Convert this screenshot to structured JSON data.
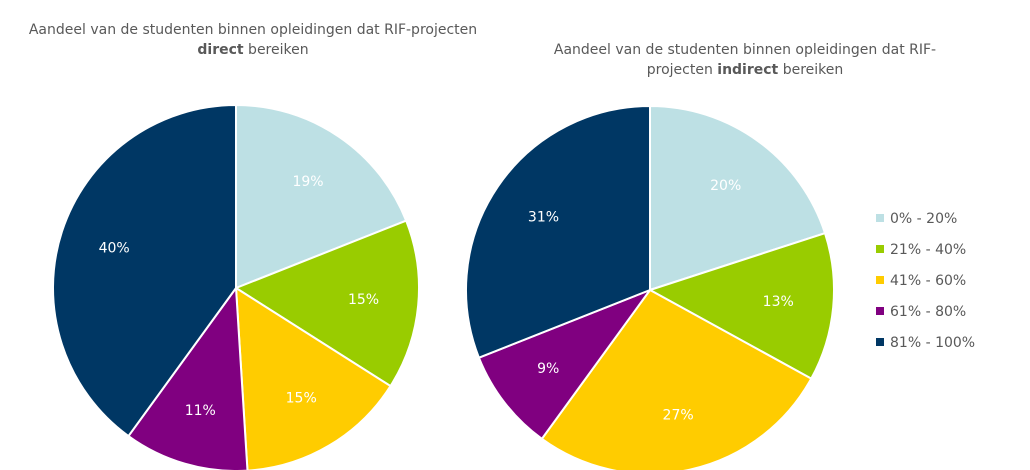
{
  "chart_data": [
    {
      "type": "pie",
      "title": [
        "Aandeel van de studenten binnen opleidingen dat RIF-projecten ",
        "direct",
        " bereiken"
      ],
      "categories": [
        "0% - 20%",
        "21% - 40%",
        "41% - 60%",
        "61% - 80%",
        "81% - 100%"
      ],
      "values": [
        19,
        15,
        15,
        11,
        40
      ],
      "value_labels": [
        "19%",
        "15%",
        "15%",
        "11%",
        "40%"
      ],
      "colors": [
        "#bde0e4",
        "#99cc00",
        "#ffcc00",
        "#800080",
        "#003764"
      ]
    },
    {
      "type": "pie",
      "title": [
        "Aandeel van de studenten binnen opleidingen dat RIF-projecten ",
        "indirect",
        " bereiken"
      ],
      "categories": [
        "0% - 20%",
        "21% - 40%",
        "41% - 60%",
        "61% - 80%",
        "81% - 100%"
      ],
      "values": [
        20,
        13,
        27,
        9,
        31
      ],
      "value_labels": [
        "20%",
        "13%",
        "27%",
        "9%",
        "31%"
      ],
      "colors": [
        "#bde0e4",
        "#99cc00",
        "#ffcc00",
        "#800080",
        "#003764"
      ]
    }
  ]
}
